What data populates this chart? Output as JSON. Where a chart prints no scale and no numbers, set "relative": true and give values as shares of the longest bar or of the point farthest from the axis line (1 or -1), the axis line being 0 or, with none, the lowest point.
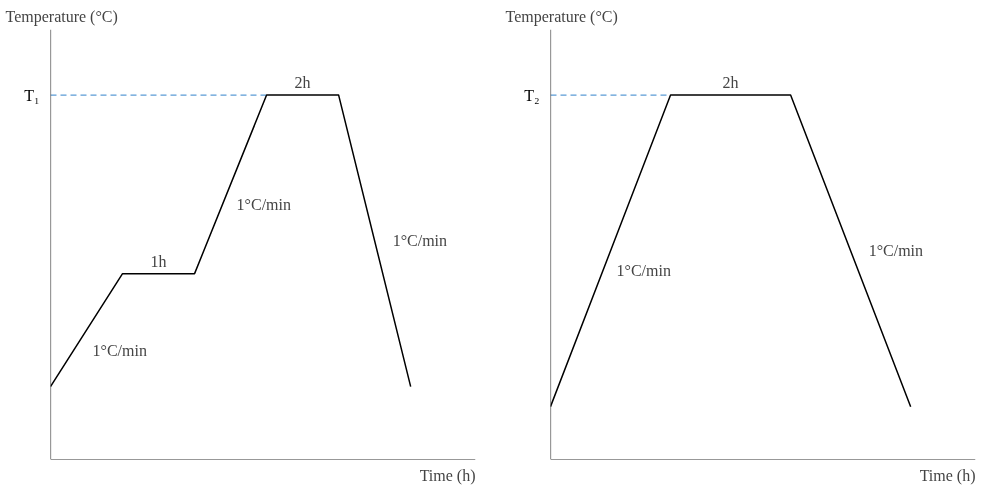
{
  "chart_data": [
    {
      "type": "line",
      "relative": true,
      "ylabel": "Temperature (°C)",
      "xlabel": "Time (h)",
      "categories": [
        null,
        null,
        null,
        null,
        null,
        null
      ],
      "grid": false,
      "marker": "none",
      "line_style": "solid",
      "series": [
        {
          "color": "#000000",
          "values": [
            0.2,
            0.51,
            0.51,
            1,
            1,
            0.2
          ]
        }
      ],
      "ref_lines": [
        {
          "axis": "y",
          "value": 1,
          "label": "T₁",
          "color": "#5b9bd5",
          "line_style": "dashed"
        }
      ],
      "annotations": [
        "1°C/min",
        "1h",
        "1°C/min",
        "2h",
        "1°C/min"
      ]
    },
    {
      "type": "line",
      "relative": true,
      "ylabel": "Temperature (°C)",
      "xlabel": "Time (h)",
      "categories": [
        null,
        null,
        null,
        null
      ],
      "grid": false,
      "marker": "none",
      "line_style": "solid",
      "series": [
        {
          "color": "#000000",
          "values": [
            0.145,
            1,
            1,
            0.145
          ]
        }
      ],
      "ref_lines": [
        {
          "axis": "y",
          "value": 1,
          "label": "T₂",
          "color": "#5b9bd5",
          "line_style": "dashed"
        }
      ],
      "annotations": [
        "1°C/min",
        "2h",
        "1°C/min"
      ]
    }
  ]
}
